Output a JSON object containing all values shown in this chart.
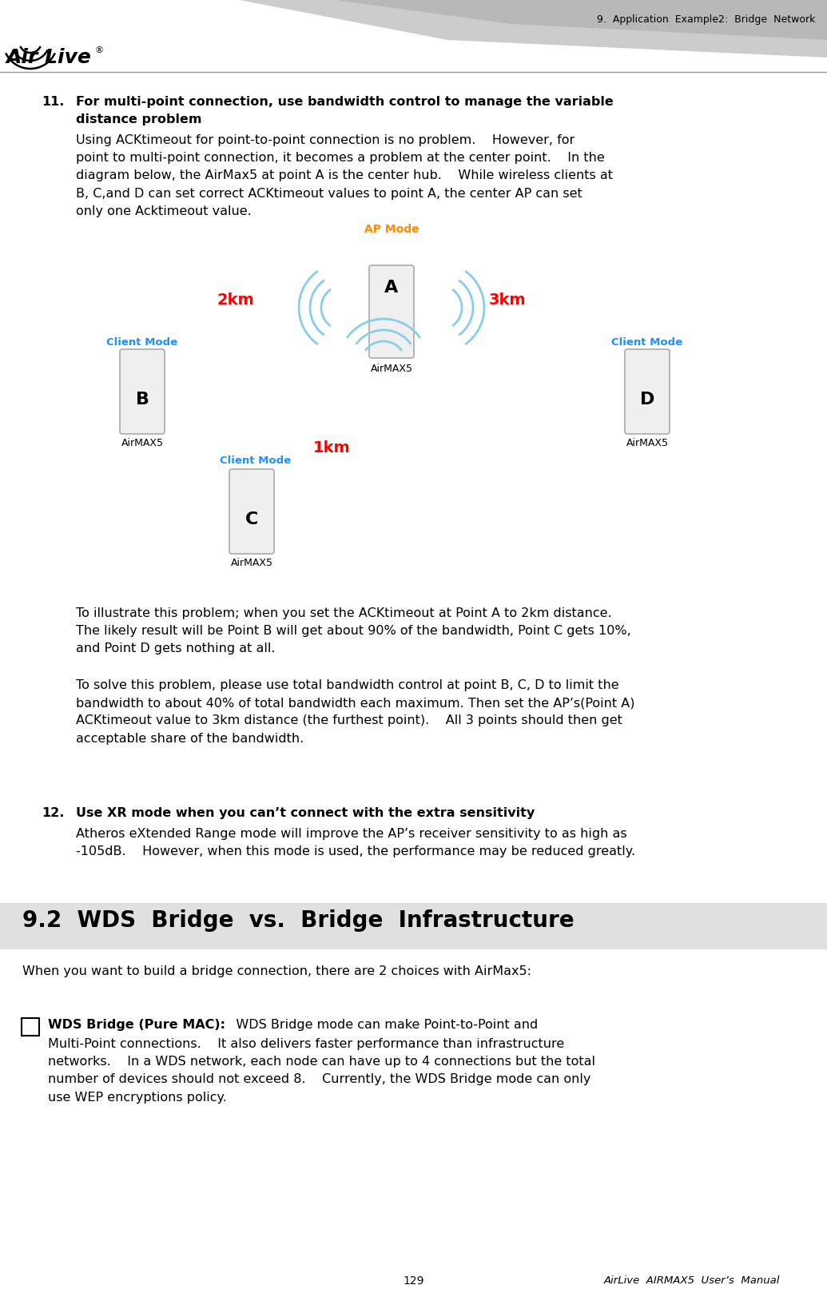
{
  "page_width": 10.35,
  "page_height": 16.18,
  "dpi": 100,
  "bg_color": "#ffffff",
  "header_title": "9.  Application  Example2:  Bridge  Network",
  "footer_page": "129",
  "footer_manual": "AirLive  AIRMAX5  User’s  Manual",
  "diagram_ap_mode_color": "#FF8C00",
  "diagram_client_mode_color": "#1E90FF",
  "diagram_dist_color": "#FF0000",
  "diagram_airmax5_label": "AirMAX5",
  "body_fontsize": 11.5,
  "bold_fontsize": 11.5,
  "section92_title_fontsize": 20
}
